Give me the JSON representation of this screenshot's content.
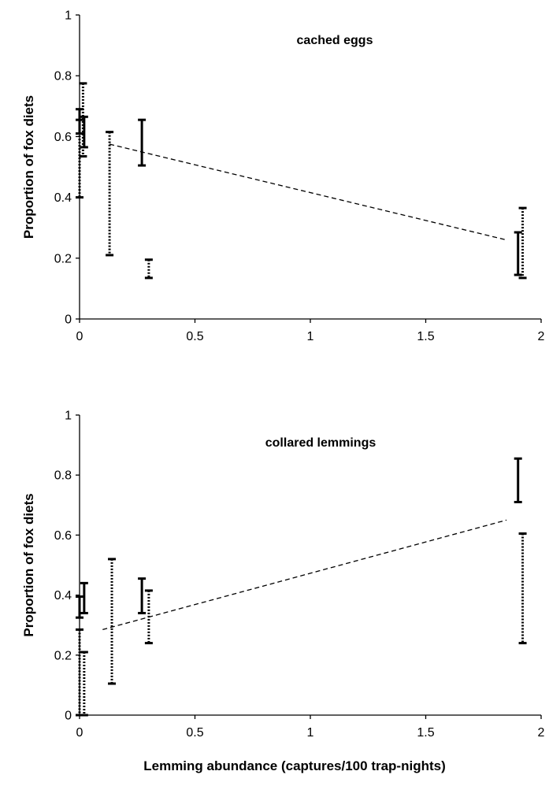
{
  "chart_data": [
    {
      "type": "errorbar",
      "title": "cached eggs",
      "ylabel": "Proportion of fox diets",
      "xlabel": "",
      "xlim": [
        0,
        2
      ],
      "ylim": [
        0,
        1
      ],
      "x_ticks": [
        "0",
        "0.5",
        "1",
        "1.5",
        "2"
      ],
      "y_ticks": [
        "0",
        "0.2",
        "0.4",
        "0.6",
        "0.8",
        "1"
      ],
      "series": [
        {
          "style": "solid",
          "intervals": [
            {
              "x": 0.0,
              "low": 0.61,
              "high": 0.69
            },
            {
              "x": 0.02,
              "low": 0.565,
              "high": 0.665
            },
            {
              "x": 0.27,
              "low": 0.505,
              "high": 0.655
            },
            {
              "x": 1.9,
              "low": 0.145,
              "high": 0.285
            }
          ]
        },
        {
          "style": "dotted",
          "intervals": [
            {
              "x": 0.0,
              "low": 0.4,
              "high": 0.655
            },
            {
              "x": 0.015,
              "low": 0.535,
              "high": 0.775
            },
            {
              "x": 0.13,
              "low": 0.21,
              "high": 0.615
            },
            {
              "x": 0.3,
              "low": 0.135,
              "high": 0.195
            },
            {
              "x": 1.92,
              "low": 0.135,
              "high": 0.365
            }
          ]
        }
      ],
      "trendline": {
        "style": "dashed",
        "x": [
          0.13,
          1.85
        ],
        "y": [
          0.575,
          0.26
        ]
      }
    },
    {
      "type": "errorbar",
      "title": "collared lemmings",
      "ylabel": "Proportion of fox diets",
      "xlabel": "Lemming abundance (captures/100 trap-nights)",
      "xlim": [
        0,
        2
      ],
      "ylim": [
        0,
        1
      ],
      "x_ticks": [
        "0",
        "0.5",
        "1",
        "1.5",
        "2"
      ],
      "y_ticks": [
        "0",
        "0.2",
        "0.4",
        "0.6",
        "0.8",
        "1"
      ],
      "series": [
        {
          "style": "solid",
          "intervals": [
            {
              "x": 0.0,
              "low": 0.325,
              "high": 0.395
            },
            {
              "x": 0.02,
              "low": 0.34,
              "high": 0.44
            },
            {
              "x": 0.27,
              "low": 0.34,
              "high": 0.455
            },
            {
              "x": 1.9,
              "low": 0.71,
              "high": 0.855
            }
          ]
        },
        {
          "style": "dotted",
          "intervals": [
            {
              "x": 0.0,
              "low": 0.0,
              "high": 0.285
            },
            {
              "x": 0.02,
              "low": 0.0,
              "high": 0.21
            },
            {
              "x": 0.14,
              "low": 0.105,
              "high": 0.52
            },
            {
              "x": 0.3,
              "low": 0.24,
              "high": 0.415
            },
            {
              "x": 1.92,
              "low": 0.24,
              "high": 0.605
            }
          ]
        }
      ],
      "trendline": {
        "style": "dashed",
        "x": [
          0.1,
          1.85
        ],
        "y": [
          0.285,
          0.65
        ]
      }
    }
  ]
}
